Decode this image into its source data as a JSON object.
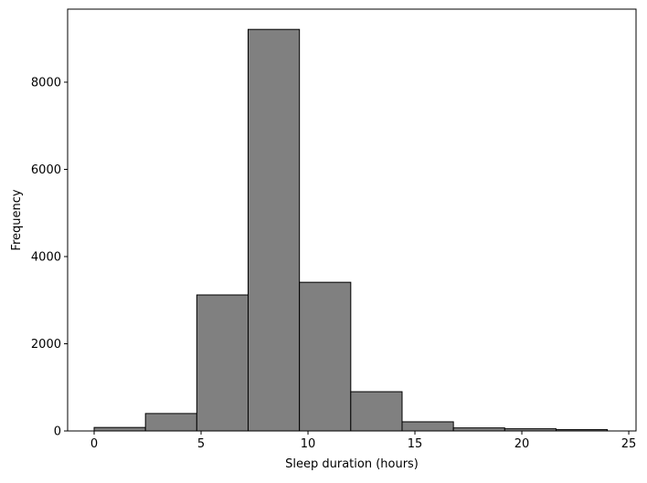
{
  "chart_data": {
    "type": "histogram",
    "x_label": "Sleep duration (hours)",
    "y_label": "Frequency",
    "bins": [
      0,
      2.4,
      4.8,
      7.2,
      9.6,
      12,
      14.4,
      16.8,
      19.2,
      21.6,
      24
    ],
    "values": [
      80,
      400,
      3120,
      9210,
      3410,
      900,
      210,
      70,
      50,
      30
    ],
    "color": "#808080",
    "edgecolor": "#000000",
    "xlim": [
      -1.24,
      25.34
    ],
    "xticks": [
      0,
      5,
      10,
      15,
      20,
      25
    ],
    "ylim": [
      0,
      9675
    ],
    "yticks": [
      0,
      2000,
      4000,
      6000,
      8000
    ]
  }
}
